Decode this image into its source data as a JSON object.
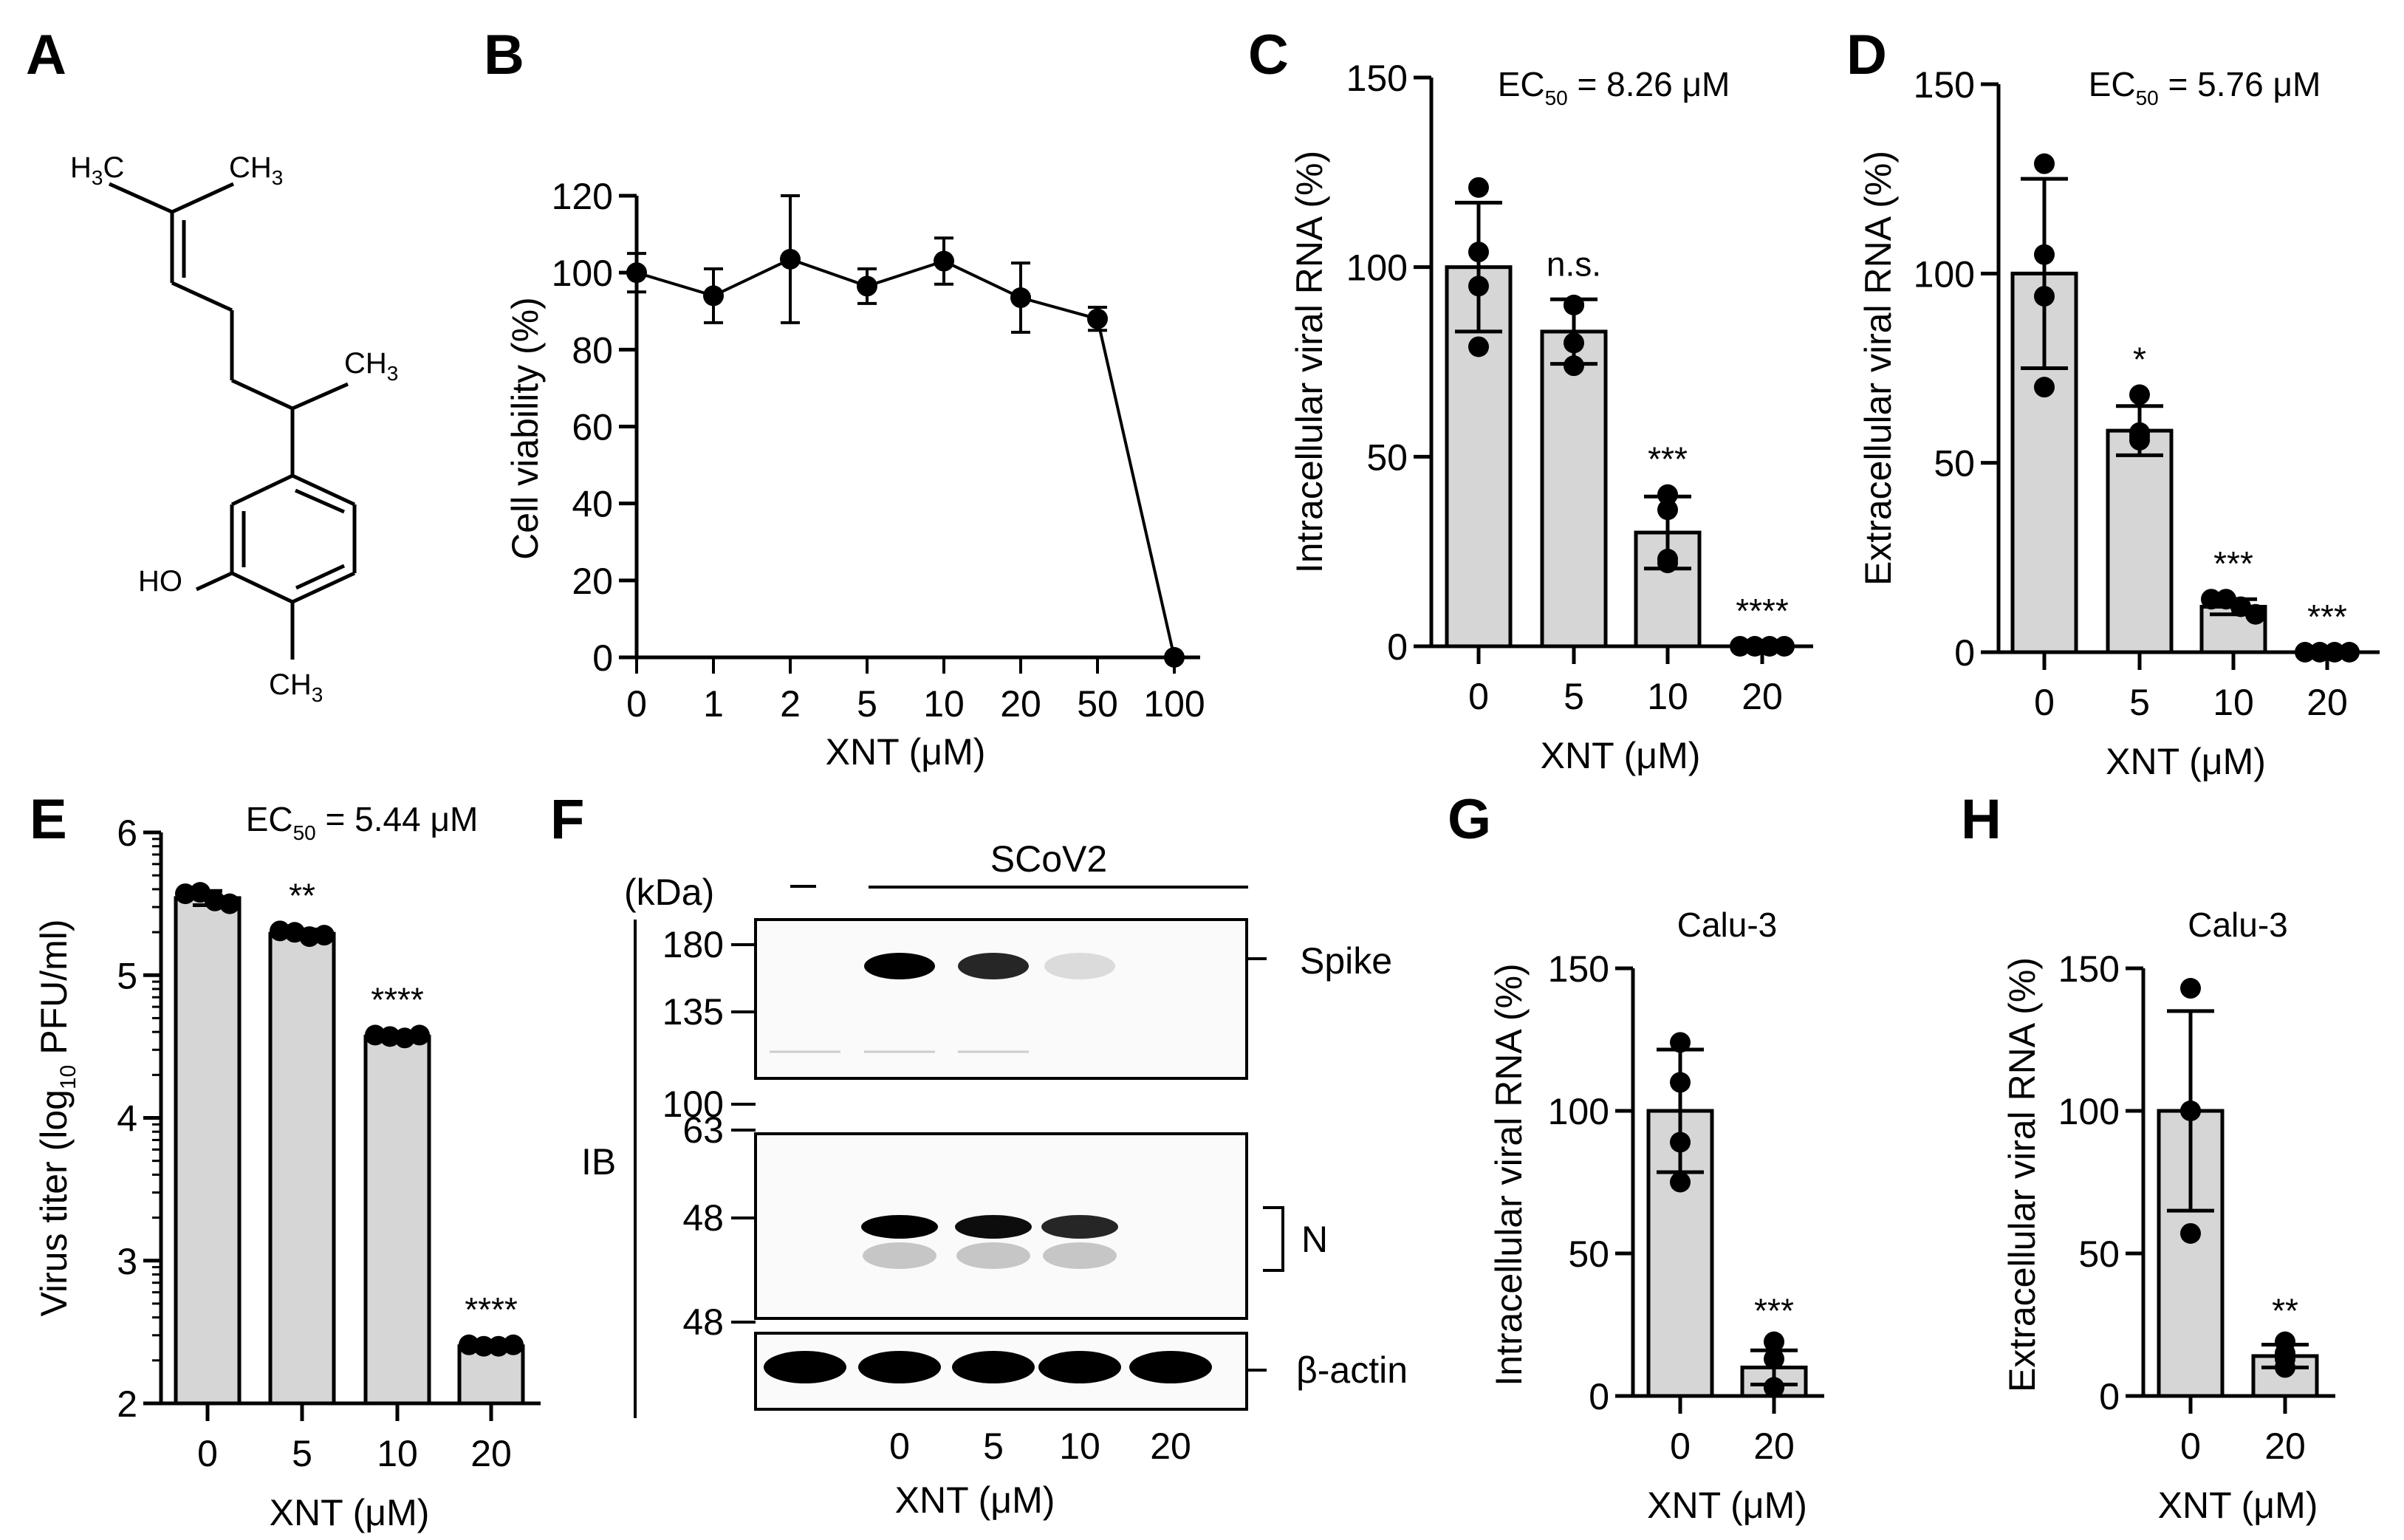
{
  "figure": {
    "panel_labels": [
      "A",
      "B",
      "C",
      "D",
      "E",
      "F",
      "G",
      "H"
    ],
    "x_axis_title": "XNT (μM)",
    "bar_fill": "#d6d6d6",
    "ink": "#000000"
  },
  "panel_a": {
    "label": "A",
    "structure_labels": {
      "h3c_left": "H3C",
      "ch3_top": "CH3",
      "ch3_side": "CH3",
      "ho": "HO",
      "ch3_bottom": "CH3"
    }
  },
  "chart_data": [
    {
      "panel": "B",
      "type": "line",
      "title": "",
      "xlabel": "XNT (μM)",
      "ylabel": "Cell viability (%)",
      "categories": [
        "0",
        "1",
        "2",
        "5",
        "10",
        "20",
        "50",
        "100"
      ],
      "values": [
        100,
        94,
        103.5,
        96.5,
        103,
        93.5,
        88,
        0
      ],
      "errors": [
        5,
        7,
        16.5,
        4.5,
        6,
        9,
        3,
        0
      ],
      "ylim": [
        0,
        120
      ],
      "yticks": [
        0,
        20,
        40,
        60,
        80,
        100,
        120
      ]
    },
    {
      "panel": "C",
      "type": "bar",
      "annotation": "EC50 = 8.26 μM",
      "xlabel": "XNT (μM)",
      "ylabel": "Intracellular viral RNA (%)",
      "categories": [
        "0",
        "5",
        "10",
        "20"
      ],
      "values": [
        100,
        83,
        30,
        0
      ],
      "errors": [
        17,
        8.5,
        9.5,
        0
      ],
      "points": [
        [
          121,
          104,
          95,
          79
        ],
        [
          90,
          90,
          80,
          74
        ],
        [
          40,
          36,
          22,
          23
        ],
        [
          0,
          0,
          0,
          0
        ]
      ],
      "significance": [
        "",
        "n.s.",
        "***",
        "****"
      ],
      "ylim": [
        0,
        150
      ],
      "yticks": [
        0,
        50,
        100,
        150
      ]
    },
    {
      "panel": "D",
      "type": "bar",
      "annotation": "EC50 = 5.76 μM",
      "xlabel": "XNT (μM)",
      "ylabel": "Extracellular viral RNA (%)",
      "categories": [
        "0",
        "5",
        "10",
        "20"
      ],
      "values": [
        100,
        58.5,
        12,
        0
      ],
      "errors": [
        25,
        6.5,
        2,
        0
      ],
      "points": [
        [
          129,
          105,
          94,
          70
        ],
        [
          68,
          58,
          56,
          57
        ],
        [
          14,
          14,
          12,
          10
        ],
        [
          0,
          0,
          0,
          0
        ]
      ],
      "significance": [
        "",
        "*",
        "***",
        "***"
      ],
      "ylim": [
        0,
        150
      ],
      "yticks": [
        0,
        50,
        100,
        150
      ]
    },
    {
      "panel": "E",
      "type": "bar",
      "annotation": "EC50 = 5.44 μM",
      "xlabel": "XNT (μM)",
      "ylabel": "Virus titer (log10 PFU/ml)",
      "categories": [
        "0",
        "5",
        "10",
        "20"
      ],
      "values": [
        5.54,
        5.29,
        4.57,
        2.4
      ],
      "errors": [
        0.05,
        0.03,
        0.02,
        0.02
      ],
      "points": [
        [
          5.57,
          5.58,
          5.52,
          5.5
        ],
        [
          5.31,
          5.3,
          5.27,
          5.28
        ],
        [
          4.58,
          4.57,
          4.56,
          4.58
        ],
        [
          2.41,
          2.4,
          2.4,
          2.41
        ]
      ],
      "significance": [
        "",
        "**",
        "****",
        "****"
      ],
      "ylim": [
        2,
        6
      ],
      "yticks": [
        2,
        3,
        4,
        5,
        6
      ]
    },
    {
      "panel": "G",
      "type": "bar",
      "title": "Calu-3",
      "xlabel": "XNT (μM)",
      "ylabel": "Intracellular viral RNA (%)",
      "categories": [
        "0",
        "20"
      ],
      "values": [
        100,
        10
      ],
      "errors": [
        21.5,
        6
      ],
      "points": [
        [
          124,
          110,
          89,
          75
        ],
        [
          19,
          13,
          3,
          3
        ]
      ],
      "significance": [
        "",
        "***"
      ],
      "ylim": [
        0,
        150
      ],
      "yticks": [
        0,
        50,
        100,
        150
      ]
    },
    {
      "panel": "H",
      "type": "bar",
      "title": "Calu-3",
      "xlabel": "XNT (μM)",
      "ylabel": "Extracellular viral RNA (%)",
      "categories": [
        "0",
        "20"
      ],
      "values": [
        100,
        14
      ],
      "errors": [
        35,
        4
      ],
      "points": [
        [
          143,
          100,
          100,
          57
        ],
        [
          19,
          15,
          13,
          10
        ]
      ],
      "significance": [
        "",
        "**"
      ],
      "ylim": [
        0,
        150
      ],
      "yticks": [
        0,
        50,
        100,
        150
      ]
    }
  ],
  "panel_f": {
    "label": "F",
    "kda_label": "(kDa)",
    "mock_label": "−",
    "infection_label": "SCoV2",
    "ib_label": "IB",
    "lane_labels": [
      "0",
      "5",
      "10",
      "20"
    ],
    "x_axis_title": "XNT (μM)",
    "markers_top": [
      "180",
      "135",
      "100"
    ],
    "markers_mid": [
      "63",
      "48"
    ],
    "markers_bottom": [
      "48"
    ],
    "band_labels": [
      "Spike",
      "N",
      "β-actin"
    ],
    "spike_intensity": [
      0.0,
      1.0,
      0.85,
      0.12,
      0.0
    ],
    "n_intensity": [
      0.0,
      1.0,
      0.95,
      0.85,
      0.0
    ],
    "actin_intensity": [
      1.0,
      1.0,
      1.0,
      1.0,
      1.0
    ]
  }
}
